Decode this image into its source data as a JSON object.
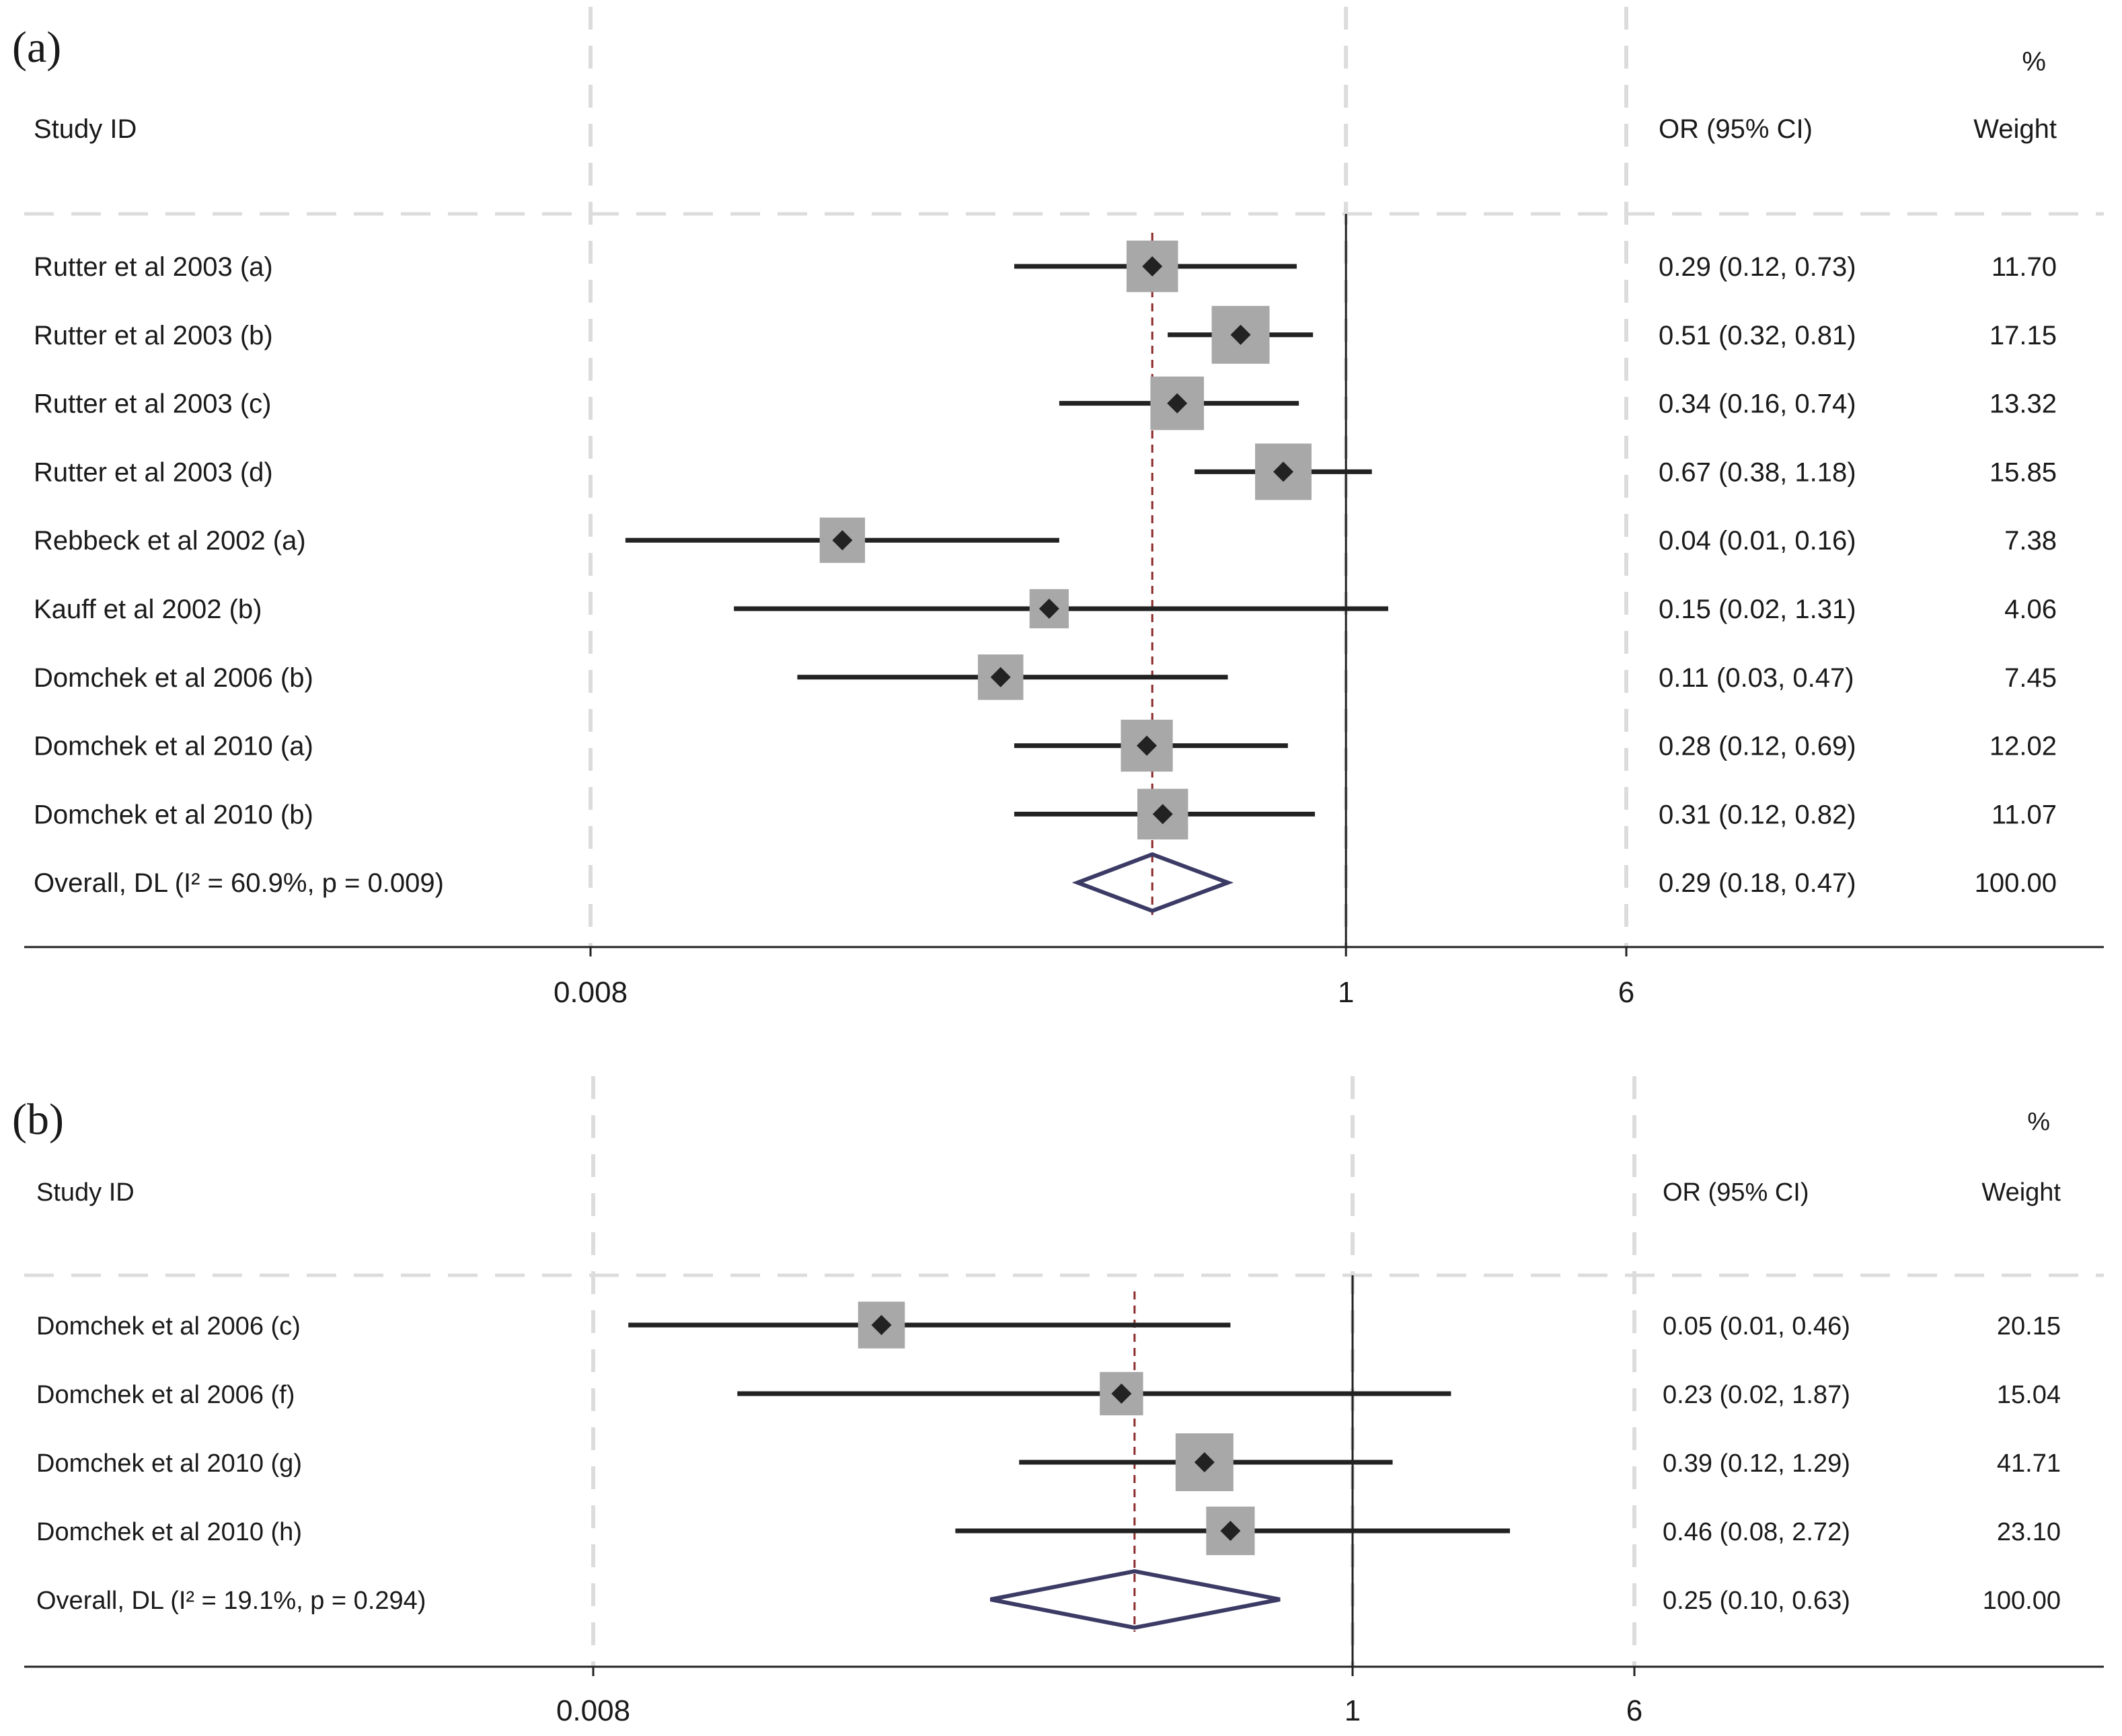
{
  "chart_data": [
    {
      "type": "forest",
      "panel_label": "(a)",
      "columns": {
        "study": "Study ID",
        "or": "OR (95% CI)",
        "weight_pct": "%",
        "weight": "Weight"
      },
      "x_scale": "log",
      "xlim": [
        0.008,
        6
      ],
      "xticks": [
        0.008,
        1,
        6
      ],
      "xtick_labels": [
        "0.008",
        "1",
        "6"
      ],
      "reference_line": 1,
      "overall_line": 0.29,
      "studies": [
        {
          "label": "Rutter et al 2003 (a)",
          "or": 0.29,
          "lo": 0.12,
          "hi": 0.73,
          "or_text": "0.29 (0.12, 0.73)",
          "weight": 11.7,
          "weight_text": "11.70"
        },
        {
          "label": "Rutter et al 2003 (b)",
          "or": 0.51,
          "lo": 0.32,
          "hi": 0.81,
          "or_text": "0.51 (0.32, 0.81)",
          "weight": 17.15,
          "weight_text": "17.15"
        },
        {
          "label": "Rutter et al 2003 (c)",
          "or": 0.34,
          "lo": 0.16,
          "hi": 0.74,
          "or_text": "0.34 (0.16, 0.74)",
          "weight": 13.32,
          "weight_text": "13.32"
        },
        {
          "label": "Rutter et al 2003 (d)",
          "or": 0.67,
          "lo": 0.38,
          "hi": 1.18,
          "or_text": "0.67 (0.38, 1.18)",
          "weight": 15.85,
          "weight_text": "15.85"
        },
        {
          "label": "Rebbeck et al 2002 (a)",
          "or": 0.04,
          "lo": 0.01,
          "hi": 0.16,
          "or_text": "0.04 (0.01, 0.16)",
          "weight": 7.38,
          "weight_text": "7.38"
        },
        {
          "label": "Kauff et al 2002 (b)",
          "or": 0.15,
          "lo": 0.02,
          "hi": 1.31,
          "or_text": "0.15 (0.02, 1.31)",
          "weight": 4.06,
          "weight_text": "4.06"
        },
        {
          "label": "Domchek et al 2006 (b)",
          "or": 0.11,
          "lo": 0.03,
          "hi": 0.47,
          "or_text": "0.11 (0.03, 0.47)",
          "weight": 7.45,
          "weight_text": "7.45"
        },
        {
          "label": "Domchek et al 2010 (a)",
          "or": 0.28,
          "lo": 0.12,
          "hi": 0.69,
          "or_text": "0.28 (0.12, 0.69)",
          "weight": 12.02,
          "weight_text": "12.02"
        },
        {
          "label": "Domchek et al 2010 (b)",
          "or": 0.31,
          "lo": 0.12,
          "hi": 0.82,
          "or_text": "0.31 (0.12, 0.82)",
          "weight": 11.07,
          "weight_text": "11.07"
        }
      ],
      "overall": {
        "label": "Overall, DL (I² = 60.9%, p = 0.009)",
        "or": 0.29,
        "lo": 0.18,
        "hi": 0.47,
        "or_text": "0.29 (0.18, 0.47)",
        "weight_text": "100.00"
      }
    },
    {
      "type": "forest",
      "panel_label": "(b)",
      "columns": {
        "study": "Study ID",
        "or": "OR (95% CI)",
        "weight_pct": "%",
        "weight": "Weight"
      },
      "x_scale": "log",
      "xlim": [
        0.008,
        6
      ],
      "xticks": [
        0.008,
        1,
        6
      ],
      "xtick_labels": [
        "0.008",
        "1",
        "6"
      ],
      "reference_line": 1,
      "overall_line": 0.25,
      "studies": [
        {
          "label": "Domchek et al 2006 (c)",
          "or": 0.05,
          "lo": 0.01,
          "hi": 0.46,
          "or_text": "0.05 (0.01, 0.46)",
          "weight": 20.15,
          "weight_text": "20.15"
        },
        {
          "label": "Domchek et al 2006 (f)",
          "or": 0.23,
          "lo": 0.02,
          "hi": 1.87,
          "or_text": "0.23 (0.02, 1.87)",
          "weight": 15.04,
          "weight_text": "15.04"
        },
        {
          "label": "Domchek et al 2010 (g)",
          "or": 0.39,
          "lo": 0.12,
          "hi": 1.29,
          "or_text": "0.39 (0.12, 1.29)",
          "weight": 41.71,
          "weight_text": "41.71"
        },
        {
          "label": "Domchek et al 2010 (h)",
          "or": 0.46,
          "lo": 0.08,
          "hi": 2.72,
          "or_text": "0.46 (0.08, 2.72)",
          "weight": 23.1,
          "weight_text": "23.10"
        }
      ],
      "overall": {
        "label": "Overall, DL (I² = 19.1%, p = 0.294)",
        "or": 0.25,
        "lo": 0.1,
        "hi": 0.63,
        "or_text": "0.25 (0.10, 0.63)",
        "weight_text": "100.00"
      }
    }
  ],
  "colors": {
    "text": "#1a1a1a",
    "ci_line": "#222222",
    "weight_box": "#a8a8a8",
    "point": "#222222",
    "overall_diamond": "#3b3b66",
    "overall_line": "#8b2a2a",
    "grid_dash": "#dcdcdc",
    "axis": "#222222"
  }
}
